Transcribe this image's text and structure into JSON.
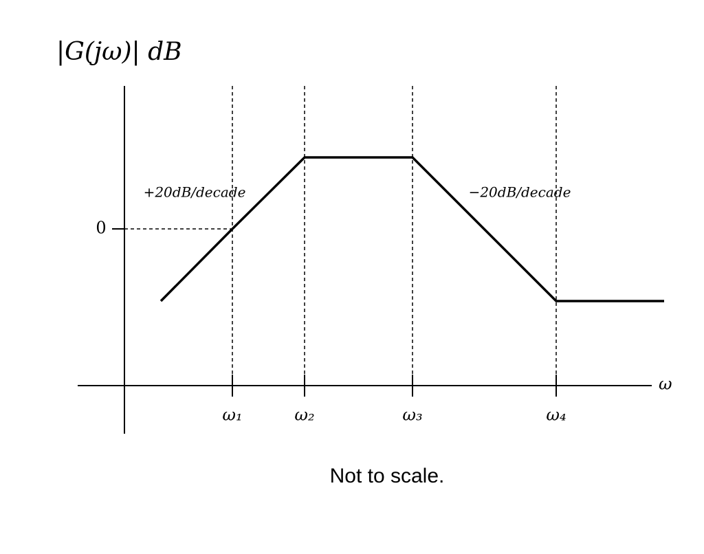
{
  "title": "|G(jω)| dB",
  "y_axis": {
    "zero_label": "0"
  },
  "x_axis": {
    "label": "ω",
    "ticks": [
      "ω₁",
      "ω₂",
      "ω₃",
      "ω₄"
    ]
  },
  "annotations": {
    "rising_slope": "+20dB/decade",
    "falling_slope": "−20dB/decade"
  },
  "caption": "Not to scale."
}
